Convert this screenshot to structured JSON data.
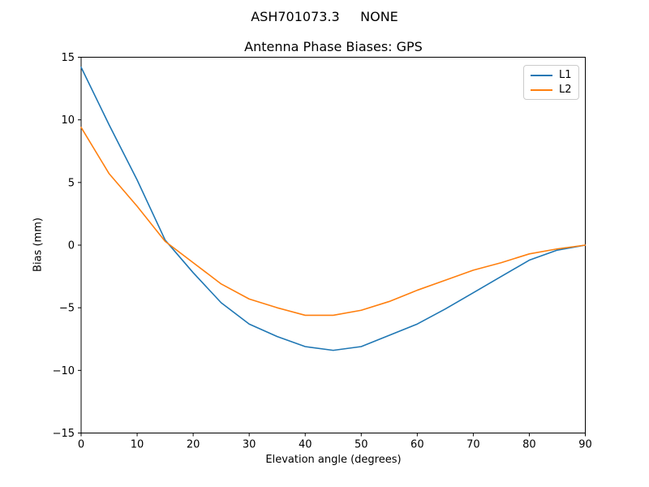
{
  "chart_data": {
    "type": "line",
    "suptitle": "ASH701073.3     NONE",
    "title": "Antenna Phase Biases: GPS",
    "xlabel": "Elevation angle (degrees)",
    "ylabel": "Bias (mm)",
    "xlim": [
      0,
      90
    ],
    "ylim": [
      -15,
      15
    ],
    "xticks": [
      0,
      10,
      20,
      30,
      40,
      50,
      60,
      70,
      80,
      90
    ],
    "yticks": [
      -15,
      -10,
      -5,
      0,
      5,
      10,
      15
    ],
    "grid": false,
    "legend_position": "upper right",
    "x": [
      0,
      5,
      10,
      15,
      20,
      25,
      30,
      35,
      40,
      45,
      50,
      55,
      60,
      65,
      70,
      75,
      80,
      85,
      90
    ],
    "series": [
      {
        "name": "L1",
        "color": "#1f77b4",
        "values": [
          14.2,
          9.6,
          5.2,
          0.4,
          -2.2,
          -4.6,
          -6.3,
          -7.3,
          -8.1,
          -8.4,
          -8.1,
          -7.2,
          -6.3,
          -5.1,
          -3.8,
          -2.5,
          -1.2,
          -0.4,
          0.0
        ]
      },
      {
        "name": "L2",
        "color": "#ff7f0e",
        "values": [
          9.4,
          5.7,
          3.1,
          0.3,
          -1.4,
          -3.1,
          -4.3,
          -5.0,
          -5.6,
          -5.6,
          -5.2,
          -4.5,
          -3.6,
          -2.8,
          -2.0,
          -1.4,
          -0.7,
          -0.3,
          0.0
        ]
      }
    ]
  }
}
